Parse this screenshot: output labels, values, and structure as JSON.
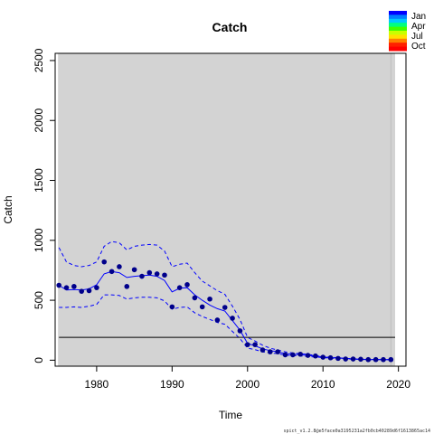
{
  "chart_data": {
    "type": "scatter",
    "title": "Catch",
    "xlabel": "Time",
    "ylabel": "Catch",
    "xlim": [
      1974.5,
      2021
    ],
    "ylim": [
      -50,
      2560
    ],
    "x_ticks": [
      1980,
      1990,
      2000,
      2010,
      2020
    ],
    "y_ticks": [
      0,
      500,
      1000,
      1500,
      2000,
      2500
    ],
    "grid": false,
    "background": "#d3d3d3",
    "observed_catch": {
      "color": "#00008b",
      "x": [
        1975,
        1976,
        1977,
        1978,
        1979,
        1980,
        1981,
        1982,
        1983,
        1984,
        1985,
        1986,
        1987,
        1988,
        1989,
        1990,
        1991,
        1992,
        1993,
        1994,
        1995,
        1996,
        1997,
        1998,
        1999,
        2000,
        2001,
        2002,
        2003,
        2004,
        2005,
        2006,
        2007,
        2008,
        2009,
        2010,
        2011,
        2012,
        2013,
        2014,
        2015,
        2016,
        2017,
        2018,
        2019
      ],
      "y": [
        625,
        605,
        615,
        575,
        580,
        605,
        820,
        740,
        780,
        615,
        755,
        700,
        730,
        720,
        710,
        445,
        605,
        630,
        520,
        445,
        510,
        335,
        440,
        350,
        245,
        130,
        130,
        85,
        70,
        70,
        45,
        45,
        50,
        40,
        35,
        25,
        20,
        15,
        10,
        10,
        8,
        5,
        5,
        5,
        5
      ]
    },
    "predicted_catch": {
      "color": "#0000ff",
      "x": [
        1975,
        1976,
        1977,
        1978,
        1979,
        1980,
        1981,
        1982,
        1983,
        1984,
        1985,
        1986,
        1987,
        1988,
        1989,
        1990,
        1991,
        1992,
        1993,
        1994,
        1995,
        1996,
        1997,
        1998,
        1999,
        2000,
        2001,
        2002,
        2003,
        2004,
        2005,
        2006,
        2007,
        2008,
        2009,
        2010,
        2011,
        2012,
        2013,
        2014,
        2015,
        2016,
        2017,
        2018,
        2019
      ],
      "y": [
        625,
        585,
        590,
        585,
        595,
        630,
        720,
        740,
        730,
        690,
        700,
        705,
        710,
        700,
        665,
        570,
        600,
        605,
        545,
        500,
        460,
        430,
        410,
        330,
        250,
        140,
        120,
        95,
        80,
        70,
        55,
        50,
        45,
        40,
        35,
        28,
        22,
        18,
        14,
        10,
        8,
        6,
        5,
        5,
        5
      ],
      "upper": [
        940,
        820,
        790,
        780,
        790,
        820,
        950,
        990,
        980,
        920,
        950,
        960,
        965,
        960,
        910,
        780,
        800,
        810,
        730,
        660,
        620,
        580,
        550,
        450,
        340,
        190,
        160,
        125,
        100,
        85,
        70,
        60,
        55,
        48,
        40,
        32,
        25,
        20,
        15,
        12,
        9,
        7,
        6,
        5,
        5
      ],
      "lower": [
        440,
        440,
        445,
        440,
        450,
        465,
        545,
        545,
        540,
        510,
        520,
        525,
        525,
        520,
        495,
        425,
        440,
        445,
        395,
        365,
        340,
        315,
        300,
        240,
        180,
        100,
        88,
        70,
        60,
        55,
        42,
        38,
        35,
        30,
        27,
        22,
        17,
        14,
        11,
        8,
        6,
        5,
        4,
        4,
        4
      ]
    },
    "reference_line": {
      "y": 190,
      "color": "#000000"
    },
    "vertical_marker": {
      "x": 2019,
      "color": "#bebebe"
    },
    "legend": {
      "placement": "top-right",
      "labels": [
        "Jan",
        "Apr",
        "Jul",
        "Oct"
      ],
      "gradient_colors": [
        "#0000ff",
        "#0080ff",
        "#00c8ff",
        "#00ff80",
        "#40ff00",
        "#c8ff00",
        "#ffe000",
        "#ff8000",
        "#ff2000",
        "#ff0000"
      ]
    }
  },
  "footnote": "spict_v1.2.8@e5face0a3195231a2fb0cb40289d6f1613865ac14"
}
